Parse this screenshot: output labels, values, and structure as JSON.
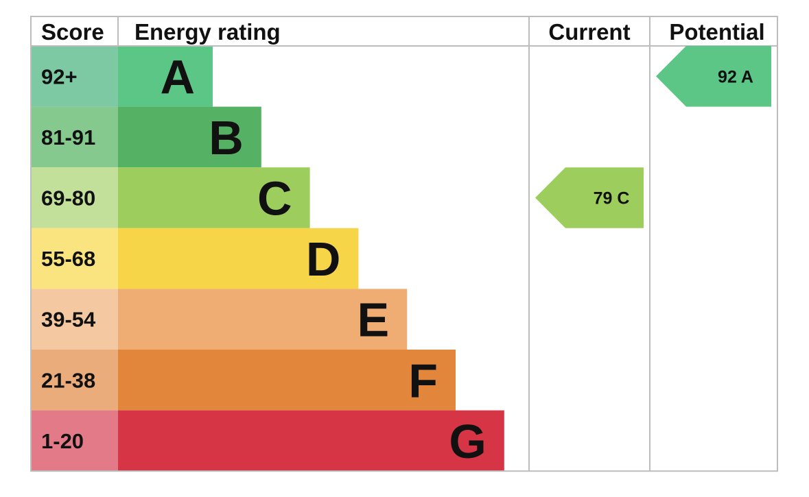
{
  "chart_data": {
    "type": "table",
    "headers": {
      "score": "Score",
      "rating": "Energy rating",
      "current": "Current",
      "potential": "Potential"
    },
    "bands": [
      {
        "letter": "A",
        "range": "92+",
        "color": "#5bc686",
        "score_bg": "#7dc9a3"
      },
      {
        "letter": "B",
        "range": "81-91",
        "color": "#55b163",
        "score_bg": "#86c98f"
      },
      {
        "letter": "C",
        "range": "69-80",
        "color": "#9dcd5c",
        "score_bg": "#c3e09a"
      },
      {
        "letter": "D",
        "range": "55-68",
        "color": "#f7d549",
        "score_bg": "#fae47f"
      },
      {
        "letter": "E",
        "range": "39-54",
        "color": "#efad73",
        "score_bg": "#f4c9a1"
      },
      {
        "letter": "F",
        "range": "21-38",
        "color": "#e1863b",
        "score_bg": "#e9ac7a"
      },
      {
        "letter": "G",
        "range": "1-20",
        "color": "#d63545",
        "score_bg": "#e27a87"
      }
    ],
    "current": {
      "value": 79,
      "letter": "C",
      "label": "79  C",
      "color": "#9dcd5c"
    },
    "potential": {
      "value": 92,
      "letter": "A",
      "label": "92  A",
      "color": "#5bc686"
    }
  }
}
